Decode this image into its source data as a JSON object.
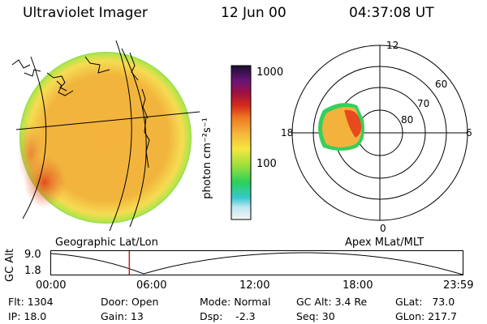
{
  "header": {
    "title": "Ultraviolet Imager",
    "date": "12 Jun 00",
    "time": "04:37:08 UT"
  },
  "colorbar": {
    "unit_label": "photon cm⁻²s⁻¹",
    "tick_1000": "1000",
    "tick_100": "100"
  },
  "polar": {
    "label_12": "12",
    "label_18": "18",
    "label_6": "6",
    "label_0": "0",
    "label_60": "60",
    "label_70": "70",
    "label_80": "80"
  },
  "captions": {
    "geographic": "Geographic Lat/Lon",
    "apex": "Apex MLat/MLT"
  },
  "altitude_plot": {
    "axis_label": "GC Alt",
    "y_max": "9.0",
    "y_min": "1.8",
    "x_ticks": [
      "00:00",
      "06:00",
      "12:00",
      "18:00",
      "23:59"
    ],
    "current_time_fraction": 0.19
  },
  "info": {
    "flt": "Flt: 1304",
    "ip": "IP: 18.0",
    "door": "Door: Open",
    "gain": "Gain: 13",
    "mode": "Mode: Normal",
    "dsp": "Dsp:    -2.3",
    "gc_alt": "GC Alt: 3.4 Re",
    "seq": "Seq: 30",
    "glat": "GLat:   73.0",
    "glon": "GLon: 217.7"
  },
  "colors": {
    "disk_base": "#f2b13a",
    "disk_edge": "#35d05a",
    "aurora_red": "#e64a1e",
    "time_marker": "#d81818"
  }
}
